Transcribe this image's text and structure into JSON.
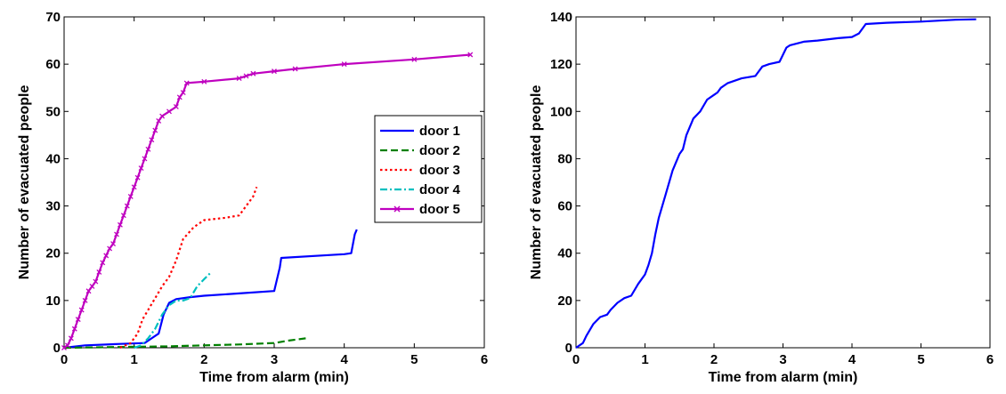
{
  "chart_data": [
    {
      "type": "line",
      "xlabel": "Time from alarm (min)",
      "ylabel": "Number of evacuated people",
      "xlim": [
        0,
        6
      ],
      "ylim": [
        0,
        70
      ],
      "xticks": [
        0,
        1,
        2,
        3,
        4,
        5,
        6
      ],
      "yticks": [
        0,
        10,
        20,
        30,
        40,
        50,
        60,
        70
      ],
      "grid": false,
      "legend": "right",
      "series": [
        {
          "name": "door 1",
          "color": "#0000ff",
          "dash": "solid",
          "points": [
            [
              0,
              0
            ],
            [
              0.3,
              0.5
            ],
            [
              0.8,
              0.8
            ],
            [
              1.15,
              1
            ],
            [
              1.25,
              2
            ],
            [
              1.35,
              3
            ],
            [
              1.42,
              7
            ],
            [
              1.5,
              9.5
            ],
            [
              1.6,
              10.3
            ],
            [
              1.8,
              10.7
            ],
            [
              2.0,
              11
            ],
            [
              2.5,
              11.5
            ],
            [
              3.0,
              12
            ],
            [
              3.08,
              17
            ],
            [
              3.1,
              19
            ],
            [
              4.0,
              19.8
            ],
            [
              4.1,
              20
            ],
            [
              4.15,
              24
            ],
            [
              4.18,
              25
            ]
          ]
        },
        {
          "name": "door 2",
          "color": "#008000",
          "dash": "dashed",
          "points": [
            [
              0,
              0
            ],
            [
              0.5,
              0.1
            ],
            [
              1.0,
              0.2
            ],
            [
              1.5,
              0.3
            ],
            [
              2.0,
              0.5
            ],
            [
              2.5,
              0.7
            ],
            [
              3.0,
              1
            ],
            [
              3.2,
              1.5
            ],
            [
              3.45,
              2
            ]
          ]
        },
        {
          "name": "door 3",
          "color": "#ff0000",
          "dash": "dotted",
          "points": [
            [
              0.8,
              0
            ],
            [
              0.95,
              1
            ],
            [
              1.05,
              3
            ],
            [
              1.12,
              6
            ],
            [
              1.2,
              8
            ],
            [
              1.3,
              10.5
            ],
            [
              1.4,
              13
            ],
            [
              1.5,
              15
            ],
            [
              1.6,
              18.5
            ],
            [
              1.7,
              23
            ],
            [
              1.85,
              25.5
            ],
            [
              2.0,
              27
            ],
            [
              2.3,
              27.5
            ],
            [
              2.5,
              28
            ],
            [
              2.6,
              30
            ],
            [
              2.7,
              32
            ],
            [
              2.75,
              34
            ]
          ]
        },
        {
          "name": "door 4",
          "color": "#00bfbf",
          "dash": "dashdot",
          "points": [
            [
              1.0,
              0
            ],
            [
              1.1,
              0.5
            ],
            [
              1.2,
              2
            ],
            [
              1.3,
              4
            ],
            [
              1.4,
              7
            ],
            [
              1.5,
              9
            ],
            [
              1.6,
              10
            ],
            [
              1.7,
              10
            ],
            [
              1.8,
              10.5
            ],
            [
              1.9,
              13
            ],
            [
              2.0,
              14.5
            ],
            [
              2.1,
              16
            ]
          ]
        },
        {
          "name": "door 5",
          "color": "#bf00bf",
          "dash": "solid",
          "marker": "x",
          "points": [
            [
              0,
              0
            ],
            [
              0.05,
              0.5
            ],
            [
              0.1,
              2
            ],
            [
              0.15,
              4
            ],
            [
              0.2,
              6
            ],
            [
              0.25,
              8
            ],
            [
              0.3,
              10
            ],
            [
              0.35,
              12
            ],
            [
              0.4,
              13
            ],
            [
              0.45,
              14
            ],
            [
              0.5,
              16
            ],
            [
              0.55,
              18
            ],
            [
              0.6,
              19.5
            ],
            [
              0.65,
              21
            ],
            [
              0.7,
              22
            ],
            [
              0.75,
              24
            ],
            [
              0.8,
              26
            ],
            [
              0.85,
              28
            ],
            [
              0.9,
              30
            ],
            [
              0.95,
              32
            ],
            [
              1.0,
              34
            ],
            [
              1.05,
              36
            ],
            [
              1.1,
              38
            ],
            [
              1.15,
              40
            ],
            [
              1.2,
              42
            ],
            [
              1.25,
              44
            ],
            [
              1.3,
              46
            ],
            [
              1.35,
              48
            ],
            [
              1.4,
              49
            ],
            [
              1.5,
              50
            ],
            [
              1.6,
              51
            ],
            [
              1.65,
              53
            ],
            [
              1.7,
              54
            ],
            [
              1.75,
              56
            ],
            [
              2.0,
              56.3
            ],
            [
              2.5,
              57
            ],
            [
              2.6,
              57.5
            ],
            [
              2.7,
              58
            ],
            [
              3.0,
              58.5
            ],
            [
              3.3,
              59
            ],
            [
              4.0,
              60
            ],
            [
              5.0,
              61
            ],
            [
              5.8,
              62
            ]
          ]
        }
      ]
    },
    {
      "type": "line",
      "xlabel": "Time from alarm (min)",
      "ylabel": "Number of evacuated people",
      "xlim": [
        0,
        6
      ],
      "ylim": [
        0,
        140
      ],
      "xticks": [
        0,
        1,
        2,
        3,
        4,
        5,
        6
      ],
      "yticks": [
        0,
        20,
        40,
        60,
        80,
        100,
        120,
        140
      ],
      "grid": false,
      "series": [
        {
          "color": "#0000ff",
          "dash": "solid",
          "points": [
            [
              0,
              0
            ],
            [
              0.1,
              2
            ],
            [
              0.15,
              5
            ],
            [
              0.25,
              10
            ],
            [
              0.35,
              13
            ],
            [
              0.45,
              14
            ],
            [
              0.5,
              16
            ],
            [
              0.6,
              19
            ],
            [
              0.7,
              21
            ],
            [
              0.8,
              22
            ],
            [
              0.9,
              27
            ],
            [
              1.0,
              31
            ],
            [
              1.05,
              35
            ],
            [
              1.1,
              40
            ],
            [
              1.15,
              48
            ],
            [
              1.2,
              55
            ],
            [
              1.3,
              65
            ],
            [
              1.4,
              75
            ],
            [
              1.5,
              82
            ],
            [
              1.55,
              84
            ],
            [
              1.6,
              90
            ],
            [
              1.7,
              97
            ],
            [
              1.8,
              100
            ],
            [
              1.9,
              105
            ],
            [
              2.0,
              107
            ],
            [
              2.05,
              108
            ],
            [
              2.1,
              110
            ],
            [
              2.2,
              112
            ],
            [
              2.4,
              114
            ],
            [
              2.6,
              115
            ],
            [
              2.7,
              119
            ],
            [
              2.8,
              120
            ],
            [
              2.95,
              121
            ],
            [
              3.0,
              124
            ],
            [
              3.05,
              127
            ],
            [
              3.1,
              128
            ],
            [
              3.3,
              129.5
            ],
            [
              3.5,
              130
            ],
            [
              3.8,
              131
            ],
            [
              4.0,
              131.5
            ],
            [
              4.1,
              133
            ],
            [
              4.2,
              137
            ],
            [
              4.5,
              137.5
            ],
            [
              5.0,
              138
            ],
            [
              5.5,
              138.8
            ],
            [
              5.8,
              139
            ]
          ]
        }
      ]
    }
  ]
}
